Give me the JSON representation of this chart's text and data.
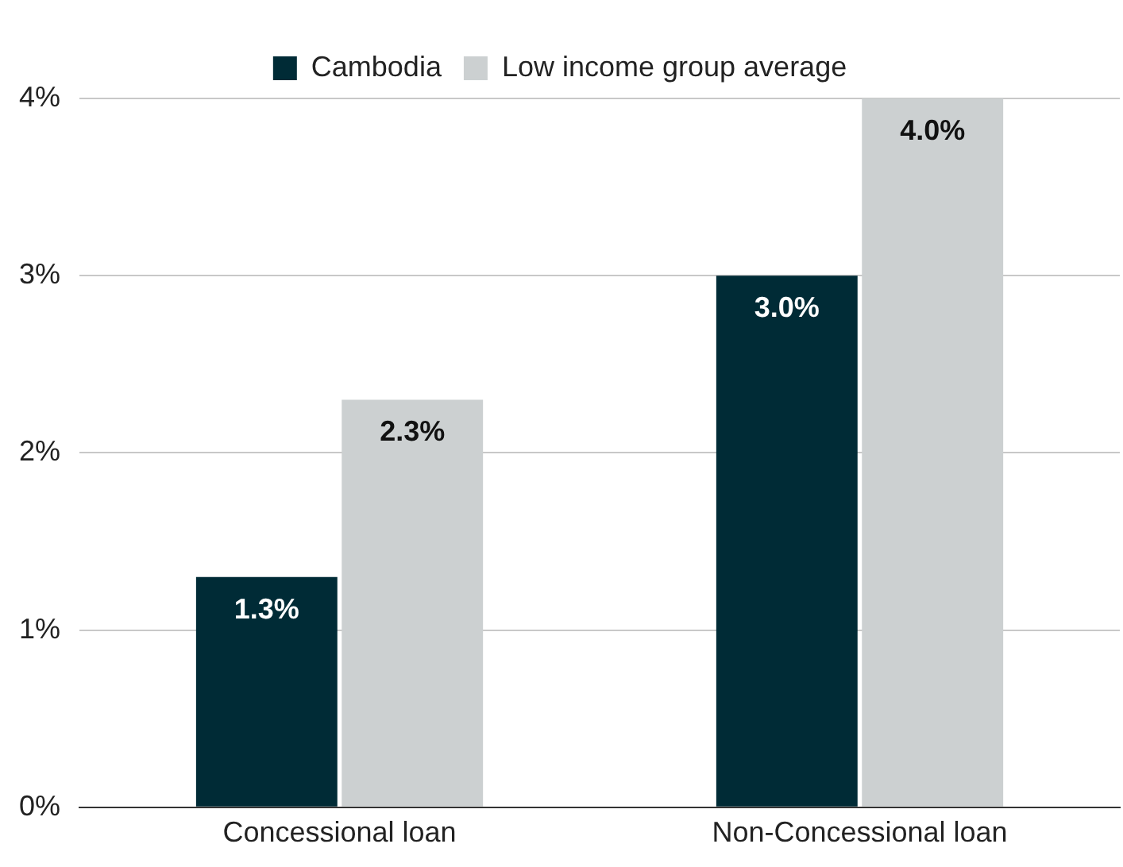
{
  "chart_data": {
    "type": "bar",
    "categories": [
      "Concessional loan",
      "Non-Concessional loan"
    ],
    "series": [
      {
        "name": "Cambodia",
        "color": "#002b36",
        "values": [
          1.3,
          3.0
        ],
        "value_labels": [
          "1.3%",
          "3.0%"
        ]
      },
      {
        "name": "Low income group average",
        "color": "#ccd0d1",
        "values": [
          2.3,
          4.0
        ],
        "value_labels": [
          "2.3%",
          "4.0%"
        ]
      }
    ],
    "ylim": [
      0,
      4
    ],
    "yticks": [
      {
        "value": 0,
        "label": "0%"
      },
      {
        "value": 1,
        "label": "1%"
      },
      {
        "value": 2,
        "label": "2%"
      },
      {
        "value": 3,
        "label": "3%"
      },
      {
        "value": 4,
        "label": "4%"
      }
    ],
    "grid": "y",
    "legend": "top"
  }
}
